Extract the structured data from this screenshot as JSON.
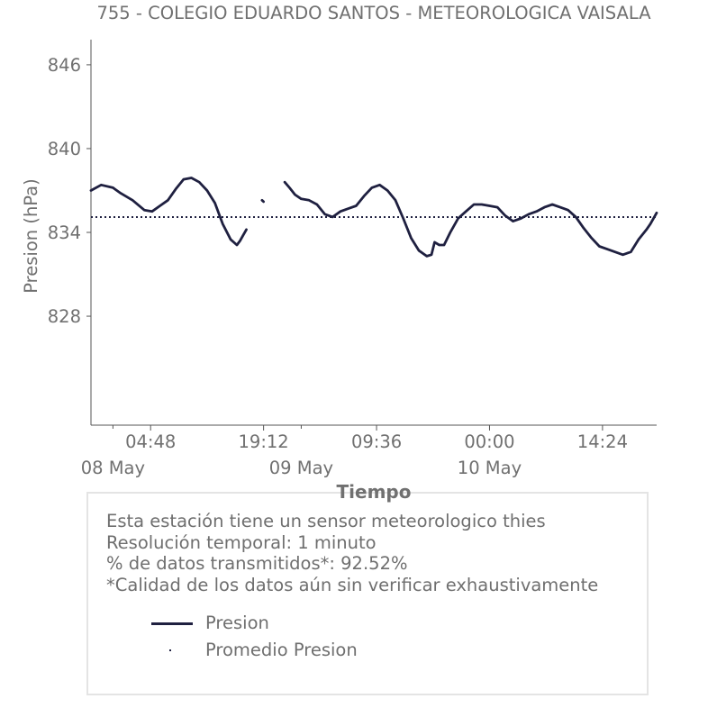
{
  "chart_data": {
    "type": "line",
    "title": "755 - COLEGIO EDUARDO SANTOS - METEOROLOGICA VAISALA",
    "xlabel": "Tiempo",
    "ylabel": "Presion (hPa)",
    "ylim": [
      820.2,
      847.8
    ],
    "yticks": [
      828,
      834,
      840,
      846
    ],
    "xticks": [
      {
        "hour": 4.8,
        "label": "04:48"
      },
      {
        "hour": 19.2,
        "label": "19:12"
      },
      {
        "hour": 33.6,
        "label": "09:36"
      },
      {
        "hour": 48.0,
        "label": "00:00"
      },
      {
        "hour": 62.4,
        "label": "14:24"
      }
    ],
    "date_labels": [
      {
        "hour": 0,
        "label": "08 May"
      },
      {
        "hour": 24,
        "label": "09 May"
      },
      {
        "hour": 48,
        "label": "10 May"
      }
    ],
    "xlim": [
      -2.8,
      69.3
    ],
    "series": [
      {
        "name": "Presion",
        "color": "#1f2040",
        "segments": [
          [
            [
              -2.8,
              837.0
            ],
            [
              -1.5,
              837.4
            ],
            [
              0.0,
              837.2
            ],
            [
              1.0,
              836.8
            ],
            [
              2.5,
              836.3
            ],
            [
              4.0,
              835.6
            ],
            [
              5.0,
              835.5
            ],
            [
              6.0,
              835.9
            ],
            [
              7.0,
              836.3
            ],
            [
              8.0,
              837.1
            ],
            [
              9.0,
              837.8
            ],
            [
              10.0,
              837.9
            ],
            [
              11.0,
              837.6
            ],
            [
              12.0,
              837.0
            ],
            [
              13.0,
              836.1
            ],
            [
              14.0,
              834.6
            ],
            [
              15.0,
              833.5
            ],
            [
              15.8,
              833.1
            ],
            [
              16.2,
              833.4
            ],
            [
              16.6,
              833.8
            ],
            [
              17.0,
              834.2
            ]
          ],
          [
            [
              19.0,
              836.3
            ],
            [
              19.2,
              836.2
            ]
          ],
          [
            [
              21.9,
              837.6
            ],
            [
              22.5,
              837.2
            ],
            [
              23.2,
              836.7
            ],
            [
              24.0,
              836.4
            ],
            [
              25.0,
              836.3
            ],
            [
              26.0,
              836.0
            ],
            [
              27.0,
              835.3
            ],
            [
              28.0,
              835.1
            ],
            [
              29.0,
              835.5
            ],
            [
              30.0,
              835.7
            ],
            [
              31.0,
              835.9
            ],
            [
              32.0,
              836.6
            ],
            [
              33.0,
              837.2
            ],
            [
              34.0,
              837.4
            ],
            [
              35.0,
              837.0
            ],
            [
              36.0,
              836.3
            ],
            [
              37.0,
              835.0
            ],
            [
              38.0,
              833.6
            ],
            [
              39.0,
              832.7
            ],
            [
              40.0,
              832.3
            ],
            [
              40.6,
              832.4
            ],
            [
              41.0,
              833.3
            ],
            [
              41.6,
              833.1
            ],
            [
              42.2,
              833.1
            ],
            [
              43.0,
              834.0
            ],
            [
              44.0,
              835.0
            ],
            [
              45.0,
              835.5
            ],
            [
              46.0,
              836.0
            ],
            [
              47.0,
              836.0
            ],
            [
              48.0,
              835.9
            ],
            [
              49.0,
              835.8
            ],
            [
              50.0,
              835.2
            ],
            [
              51.0,
              834.8
            ],
            [
              52.0,
              835.0
            ],
            [
              53.0,
              835.3
            ],
            [
              54.0,
              835.5
            ],
            [
              55.0,
              835.8
            ],
            [
              56.0,
              836.0
            ],
            [
              57.0,
              835.8
            ],
            [
              58.0,
              835.6
            ],
            [
              59.0,
              835.1
            ],
            [
              60.0,
              834.3
            ],
            [
              61.0,
              833.6
            ],
            [
              62.0,
              833.0
            ],
            [
              63.0,
              832.8
            ],
            [
              64.0,
              832.6
            ],
            [
              65.0,
              832.4
            ],
            [
              66.0,
              832.6
            ],
            [
              67.0,
              833.5
            ],
            [
              68.0,
              834.2
            ],
            [
              68.5,
              834.6
            ],
            [
              69.3,
              835.4
            ]
          ]
        ]
      },
      {
        "name": "Promedio Presion",
        "color": "#1f2040",
        "style": "dotted",
        "value": 835.1
      }
    ]
  },
  "info": {
    "lines": [
      "Esta estación tiene un sensor meteorologico thies",
      "Resolución temporal: 1 minuto",
      "% de datos transmitidos*: 92.52%",
      "*Calidad de los datos aún sin verificar exhaustivamente"
    ]
  },
  "legend": {
    "series_label": "Presion",
    "mean_label": "Promedio Presion"
  }
}
